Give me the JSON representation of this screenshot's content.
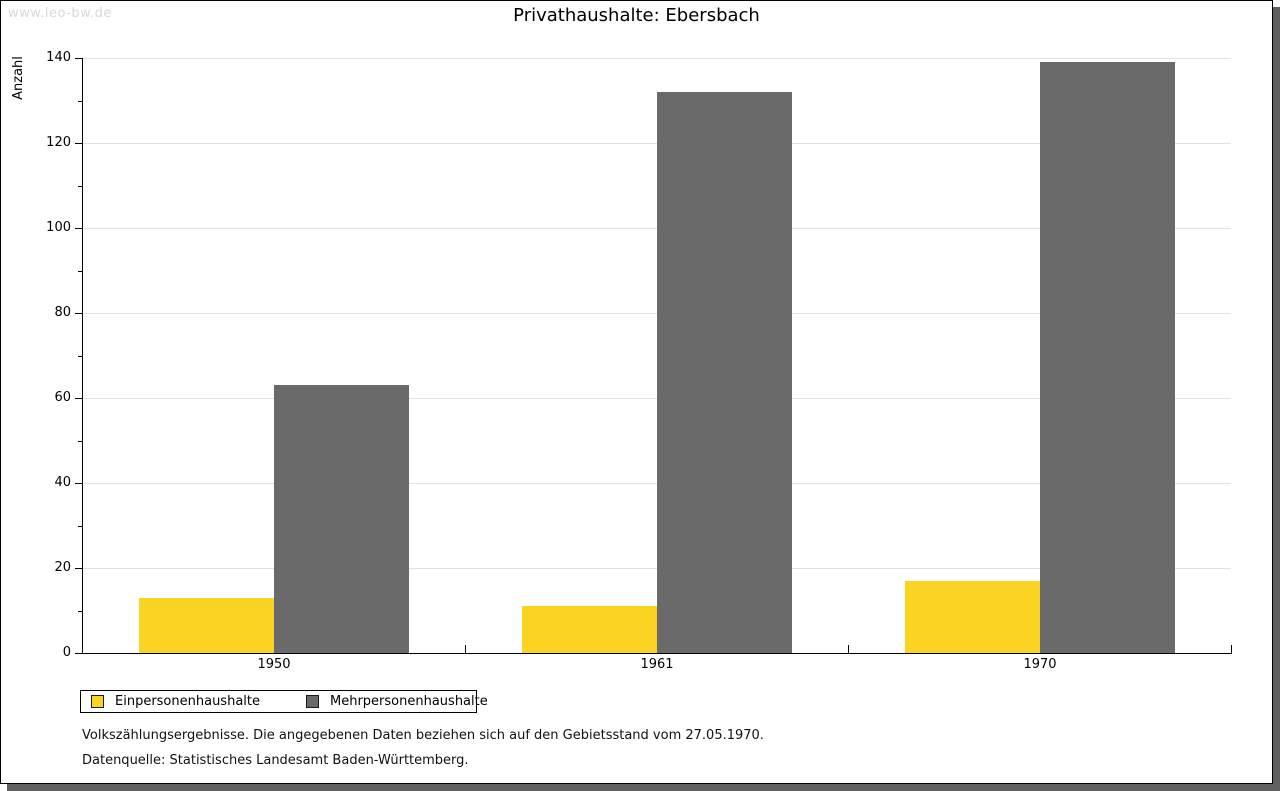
{
  "watermark": "www.leo-bw.de",
  "title": "Privathaushalte: Ebersbach",
  "chart_data": {
    "type": "bar",
    "title": "Privathaushalte: Ebersbach",
    "categories": [
      "1950",
      "1961",
      "1970"
    ],
    "series": [
      {
        "name": "Einpersonenhaushalte",
        "color": "#fbd322",
        "values": [
          13,
          11,
          17
        ]
      },
      {
        "name": "Mehrpersonenhaushalte",
        "color": "#6a6a6a",
        "values": [
          63,
          132,
          139
        ]
      }
    ],
    "xlabel": "",
    "ylabel": "Anzahl",
    "ylim": [
      0,
      140
    ],
    "yticks": [
      0,
      20,
      40,
      60,
      80,
      100,
      120,
      140
    ],
    "minor_ytick_step": 10,
    "grid": true,
    "legend_position": "bottom-left"
  },
  "footnotes": [
    "Volkszählungsergebnisse. Die angegebenen Daten beziehen sich auf den Gebietsstand vom 27.05.1970.",
    "Datenquelle: Statistisches Landesamt Baden-Württemberg."
  ]
}
